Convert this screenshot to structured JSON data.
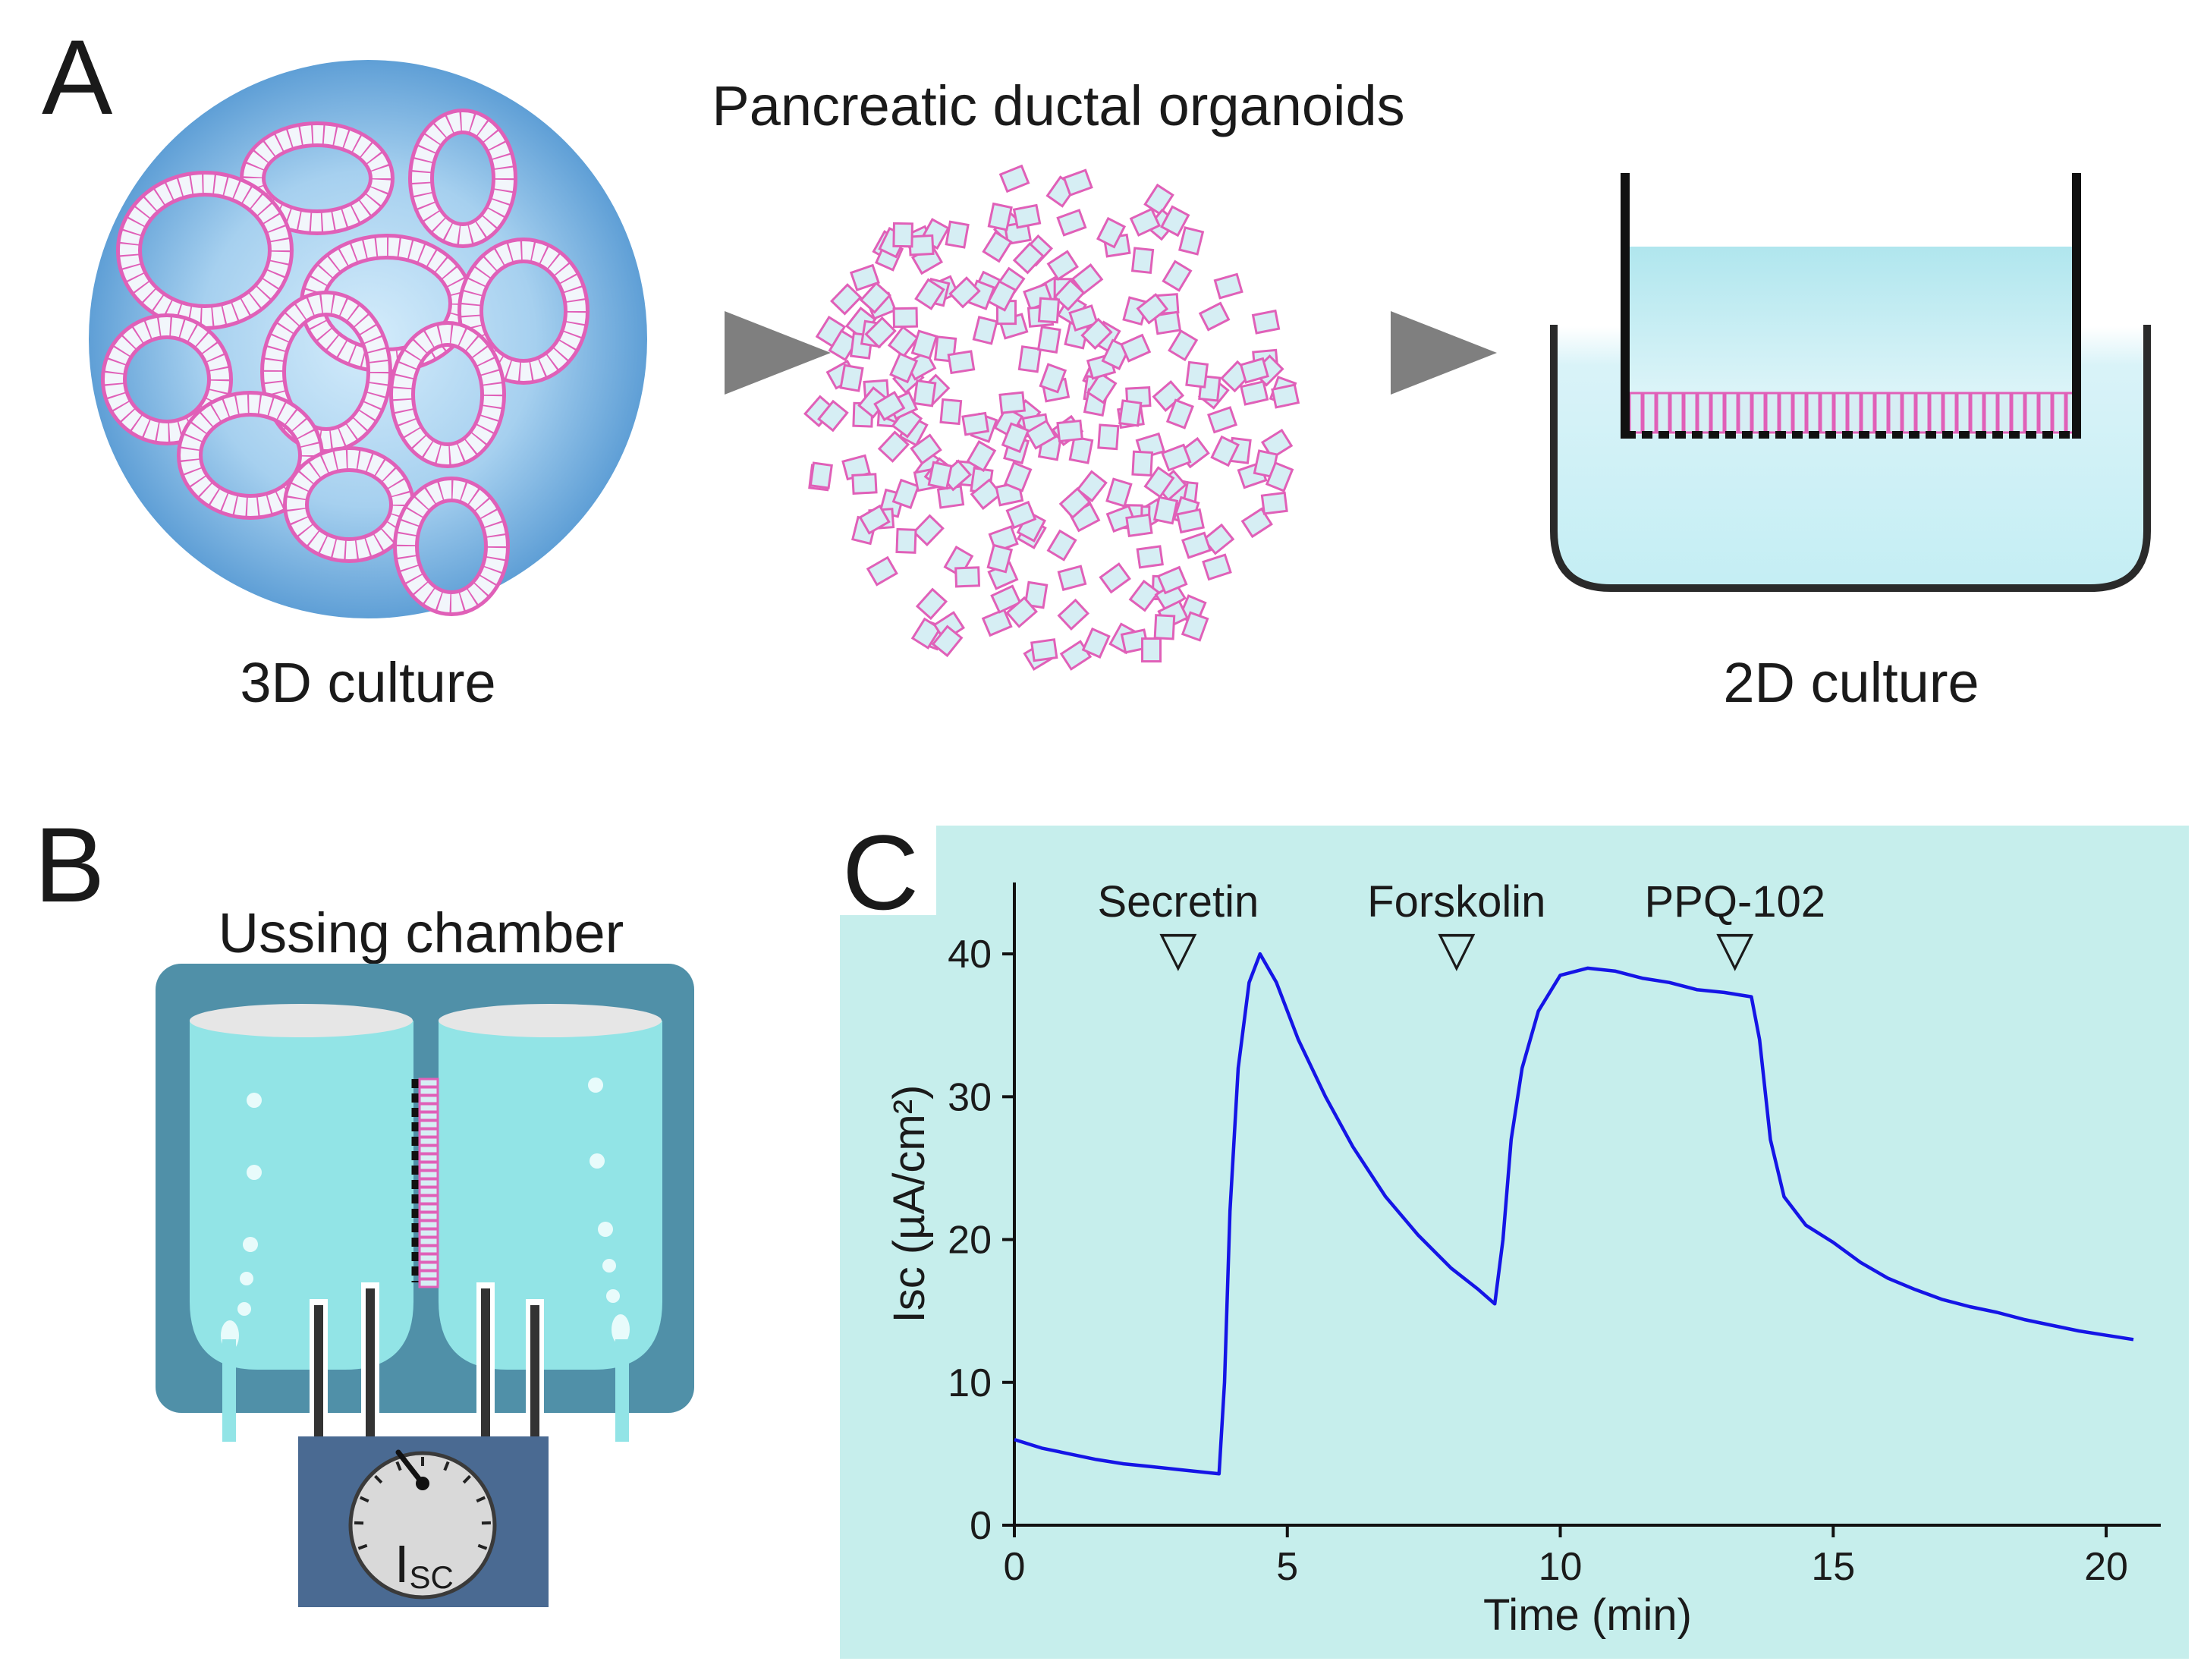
{
  "panel_a": {
    "letter": "A",
    "title": "Pancreatic ductal organoids",
    "left_caption": "3D culture",
    "right_caption": "2D culture"
  },
  "panel_b": {
    "letter": "B",
    "title": "Ussing chamber",
    "meter_label": "I",
    "meter_subscript": "SC"
  },
  "panel_c": {
    "letter": "C",
    "annotations": [
      "Secretin",
      "Forskolin",
      "PPQ-102"
    ],
    "marker_symbol": "▽"
  },
  "colors": {
    "trace": "#1515e6",
    "panel_c_bg": "#c6eeec",
    "cell_outline": "#e060b8",
    "cell_fill": "#d6eef4",
    "chamber_dark": "#5090a8",
    "chamber_fluid": "#92e4e6",
    "meter_box": "#4a6a92",
    "arrow": "#7f7f7f"
  },
  "chart_data": {
    "type": "line",
    "xlabel": "Time (min)",
    "ylabel": "Isc (µA/cm²)",
    "xlim": [
      0,
      21
    ],
    "ylim": [
      0,
      45
    ],
    "xticks": [
      0,
      5,
      10,
      15,
      20
    ],
    "yticks": [
      0,
      10,
      20,
      30,
      40
    ],
    "annotation_times": [
      3.0,
      8.1,
      13.2
    ],
    "series": [
      {
        "x": [
          0,
          0.5,
          1,
          1.5,
          2,
          2.5,
          3,
          3.5,
          3.75,
          3.85,
          3.95,
          4.1,
          4.3,
          4.5,
          4.8,
          5.2,
          5.7,
          6.2,
          6.8,
          7.4,
          8,
          8.5,
          8.8,
          8.95,
          9.1,
          9.3,
          9.6,
          10,
          10.5,
          11,
          11.5,
          12,
          12.5,
          13,
          13.5,
          13.65,
          13.85,
          14.1,
          14.5,
          15,
          15.5,
          16,
          16.5,
          17,
          17.5,
          18,
          18.5,
          19,
          19.5,
          20,
          20.5
        ],
        "y": [
          6,
          5.4,
          5.0,
          4.6,
          4.3,
          4.1,
          3.9,
          3.7,
          3.6,
          10,
          22,
          32,
          38,
          40,
          38,
          34,
          30,
          26.5,
          23,
          20.3,
          18,
          16.5,
          15.5,
          20,
          27,
          32,
          36,
          38.5,
          39,
          38.8,
          38.3,
          38,
          37.5,
          37.3,
          37,
          34,
          27,
          23,
          21,
          19.8,
          18.4,
          17.3,
          16.5,
          15.8,
          15.3,
          14.9,
          14.4,
          14.0,
          13.6,
          13.3,
          13.0
        ]
      }
    ]
  }
}
